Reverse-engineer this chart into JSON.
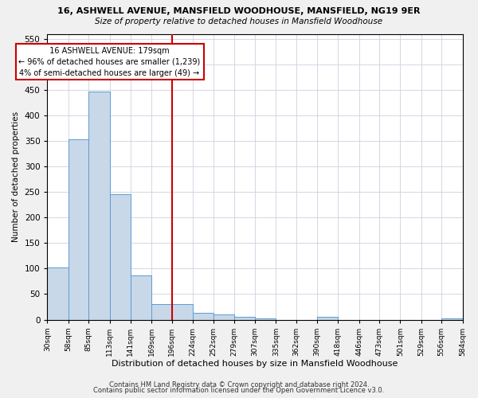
{
  "title1": "16, ASHWELL AVENUE, MANSFIELD WOODHOUSE, MANSFIELD, NG19 9ER",
  "title2": "Size of property relative to detached houses in Mansfield Woodhouse",
  "xlabel": "Distribution of detached houses by size in Mansfield Woodhouse",
  "ylabel": "Number of detached properties",
  "footer1": "Contains HM Land Registry data © Crown copyright and database right 2024.",
  "footer2": "Contains public sector information licensed under the Open Government Licence v3.0.",
  "annotation_title": "16 ASHWELL AVENUE: 179sqm",
  "annotation_line1": "← 96% of detached houses are smaller (1,239)",
  "annotation_line2": "4% of semi-detached houses are larger (49) →",
  "property_size": 179,
  "vline_x": 196,
  "bar_color": "#c8d8e8",
  "bar_edge_color": "#5b9bd5",
  "vline_color": "#cc0000",
  "annotation_box_color": "#cc0000",
  "bin_edges": [
    30,
    58,
    85,
    113,
    141,
    169,
    196,
    224,
    252,
    279,
    307,
    335,
    362,
    390,
    418,
    446,
    473,
    501,
    529,
    556,
    584
  ],
  "bin_heights": [
    103,
    353,
    447,
    245,
    86,
    30,
    30,
    14,
    10,
    6,
    2,
    0,
    0,
    5,
    0,
    0,
    0,
    0,
    0,
    3
  ],
  "ylim": [
    0,
    560
  ],
  "yticks": [
    0,
    50,
    100,
    150,
    200,
    250,
    300,
    350,
    400,
    450,
    500,
    550
  ],
  "background_color": "#f0f0f0",
  "plot_bg_color": "#ffffff",
  "grid_color": "#d0d0e0"
}
